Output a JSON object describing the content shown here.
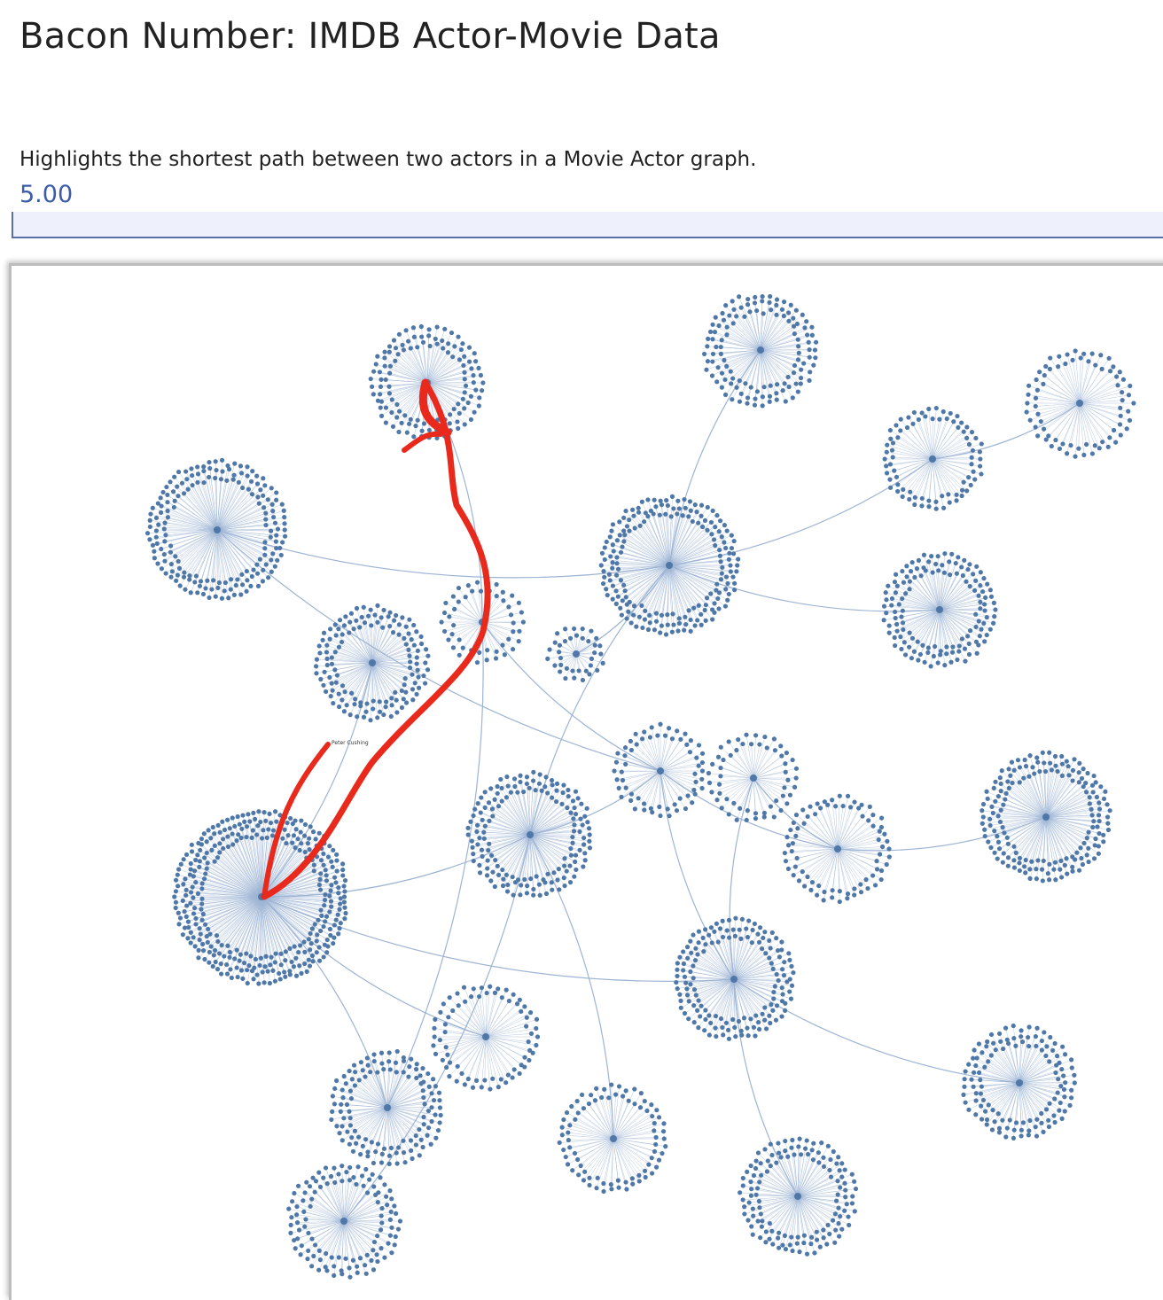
{
  "header": {
    "title": "Bacon Number: IMDB Actor-Movie Data"
  },
  "description": "Highlights the shortest path between two actors in a Movie Actor graph.",
  "slider": {
    "value_label": "5.00",
    "value": 5.0
  },
  "graph": {
    "colors": {
      "node": "#4f78a8",
      "edge": "#9db4d4",
      "path": "#e8291c"
    },
    "path_label": "Peter Cushing"
  }
}
